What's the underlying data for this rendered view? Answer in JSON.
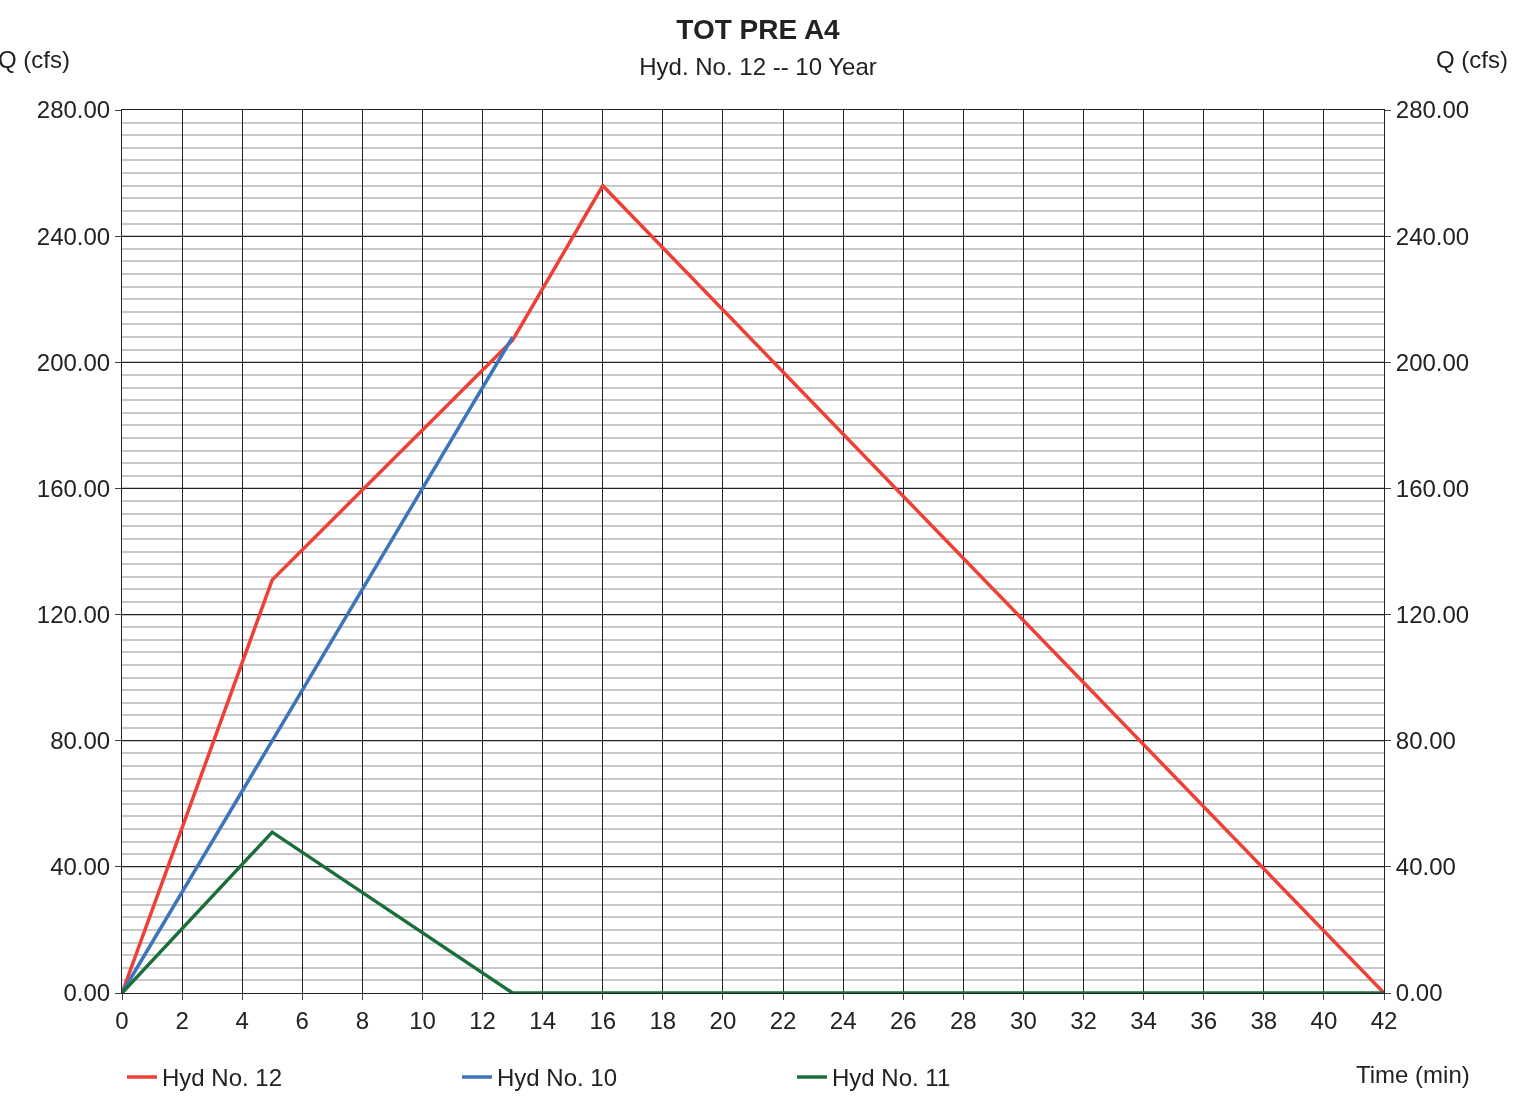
{
  "chart_data": {
    "type": "line",
    "title": "TOT PRE A4",
    "subtitle": "Hyd. No. 12 -- 10 Year",
    "xlabel": "Time (min)",
    "ylabel": "Q (cfs)",
    "y2label": "Q (cfs)",
    "series": [
      {
        "name": "Hyd No. 12",
        "color": "#ee4036",
        "x": [
          0,
          5,
          13,
          16,
          42
        ],
        "values": [
          0,
          131,
          207,
          256,
          0
        ]
      },
      {
        "name": "Hyd No. 10",
        "color": "#3c75bd",
        "x": [
          0,
          13
        ],
        "values": [
          0,
          208
        ]
      },
      {
        "name": "Hyd No. 11",
        "color": "#1a6e3a",
        "x": [
          0,
          5,
          13,
          42
        ],
        "values": [
          0,
          51,
          0,
          0
        ]
      }
    ],
    "xlim": [
      0,
      42
    ],
    "xticks": [
      0,
      2,
      4,
      6,
      8,
      10,
      12,
      14,
      16,
      18,
      20,
      22,
      24,
      26,
      28,
      30,
      32,
      34,
      36,
      38,
      40,
      42
    ],
    "ylim": [
      0,
      280
    ],
    "yticks": [
      {
        "value": 0,
        "label": "0.00"
      },
      {
        "value": 40,
        "label": "40.00"
      },
      {
        "value": 80,
        "label": "80.00"
      },
      {
        "value": 120,
        "label": "120.00"
      },
      {
        "value": 160,
        "label": "160.00"
      },
      {
        "value": 200,
        "label": "200.00"
      },
      {
        "value": 240,
        "label": "240.00"
      },
      {
        "value": 280,
        "label": "280.00"
      }
    ],
    "y2lim": [
      0,
      280
    ],
    "y2ticks": [
      {
        "value": 0,
        "label": "0.00"
      },
      {
        "value": 40,
        "label": "40.00"
      },
      {
        "value": 80,
        "label": "80.00"
      },
      {
        "value": 120,
        "label": "120.00"
      },
      {
        "value": 160,
        "label": "160.00"
      },
      {
        "value": 200,
        "label": "200.00"
      },
      {
        "value": 240,
        "label": "240.00"
      },
      {
        "value": 280,
        "label": "280.00"
      }
    ],
    "grid": true,
    "legend": "bottom left",
    "marker": "none",
    "line_style": "solid"
  }
}
